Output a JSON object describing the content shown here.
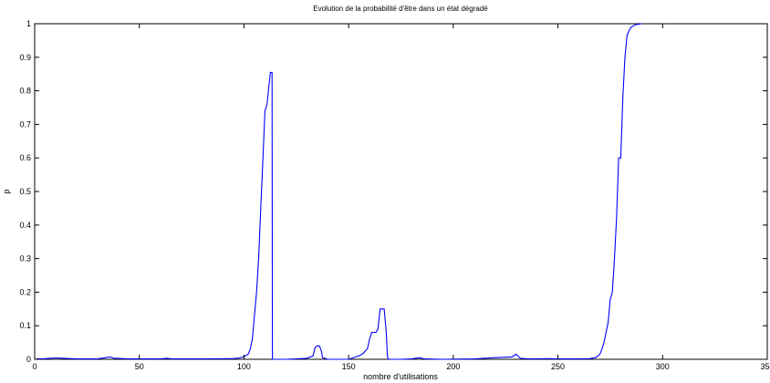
{
  "chart_data": {
    "type": "line",
    "title": "Evolution de la probabilité d'être dans un état dégradé",
    "xlabel": "nombre d'utilisations",
    "ylabel": "p",
    "xlim": [
      0,
      350
    ],
    "ylim": [
      0,
      1
    ],
    "xticks": [
      0,
      50,
      100,
      150,
      200,
      250,
      300,
      350
    ],
    "yticks": [
      0,
      0.1,
      0.2,
      0.3,
      0.4,
      0.5,
      0.6,
      0.7,
      0.8,
      0.9,
      1
    ],
    "xtick_labels": [
      "0",
      "50",
      "100",
      "150",
      "200",
      "250",
      "300",
      "350"
    ],
    "ytick_labels": [
      "0",
      "0.1",
      "0.2",
      "0.3",
      "0.4",
      "0.5",
      "0.6",
      "0.7",
      "0.8",
      "0.9",
      "1"
    ],
    "grid": false,
    "line_color": "#0000ff",
    "series": [
      {
        "points": [
          [
            1,
            0.001
          ],
          [
            5,
            0.002
          ],
          [
            10,
            0.004
          ],
          [
            14,
            0.003
          ],
          [
            20,
            0.001
          ],
          [
            30,
            0.001
          ],
          [
            34,
            0.005
          ],
          [
            36,
            0.007
          ],
          [
            38,
            0.003
          ],
          [
            45,
            0.001
          ],
          [
            55,
            0.001
          ],
          [
            60,
            0.001
          ],
          [
            63,
            0.003
          ],
          [
            66,
            0.001
          ],
          [
            80,
            0.001
          ],
          [
            95,
            0.002
          ],
          [
            98,
            0.004
          ],
          [
            100,
            0.008
          ],
          [
            102,
            0.015
          ],
          [
            103,
            0.03
          ],
          [
            104,
            0.06
          ],
          [
            105,
            0.13
          ],
          [
            106,
            0.2
          ],
          [
            107,
            0.3
          ],
          [
            108,
            0.45
          ],
          [
            109,
            0.59
          ],
          [
            110,
            0.74
          ],
          [
            111,
            0.76
          ],
          [
            112,
            0.82
          ],
          [
            112.6,
            0.855
          ],
          [
            113.4,
            0.855
          ],
          [
            113.6,
            0.0
          ],
          [
            120,
            0.0
          ],
          [
            125,
            0.001
          ],
          [
            130,
            0.003
          ],
          [
            133,
            0.01
          ],
          [
            134,
            0.035
          ],
          [
            135,
            0.04
          ],
          [
            136,
            0.04
          ],
          [
            137,
            0.025
          ],
          [
            137.5,
            0.005
          ],
          [
            140,
            0.0
          ],
          [
            150,
            0.0
          ],
          [
            152,
            0.004
          ],
          [
            155,
            0.01
          ],
          [
            157,
            0.018
          ],
          [
            159,
            0.032
          ],
          [
            160,
            0.06
          ],
          [
            161,
            0.08
          ],
          [
            163,
            0.08
          ],
          [
            164,
            0.09
          ],
          [
            165,
            0.15
          ],
          [
            167,
            0.15
          ],
          [
            168,
            0.08
          ],
          [
            168.5,
            0.01
          ],
          [
            169,
            0.0
          ],
          [
            175,
            0.0
          ],
          [
            180,
            0.001
          ],
          [
            184,
            0.005
          ],
          [
            186,
            0.001
          ],
          [
            195,
            0.0
          ],
          [
            210,
            0.001
          ],
          [
            220,
            0.005
          ],
          [
            228,
            0.007
          ],
          [
            230,
            0.015
          ],
          [
            232,
            0.003
          ],
          [
            236,
            0.001
          ],
          [
            245,
            0.002
          ],
          [
            250,
            0.001
          ],
          [
            260,
            0.001
          ],
          [
            265,
            0.002
          ],
          [
            268,
            0.005
          ],
          [
            270,
            0.015
          ],
          [
            271,
            0.03
          ],
          [
            272,
            0.05
          ],
          [
            273,
            0.08
          ],
          [
            274,
            0.11
          ],
          [
            275,
            0.18
          ],
          [
            276,
            0.2
          ],
          [
            277,
            0.3
          ],
          [
            278,
            0.42
          ],
          [
            279,
            0.6
          ],
          [
            280,
            0.6
          ],
          [
            281,
            0.78
          ],
          [
            282,
            0.9
          ],
          [
            283,
            0.965
          ],
          [
            284,
            0.98
          ],
          [
            285,
            0.99
          ],
          [
            287,
            0.997
          ],
          [
            290,
            1.0
          ]
        ]
      }
    ]
  }
}
